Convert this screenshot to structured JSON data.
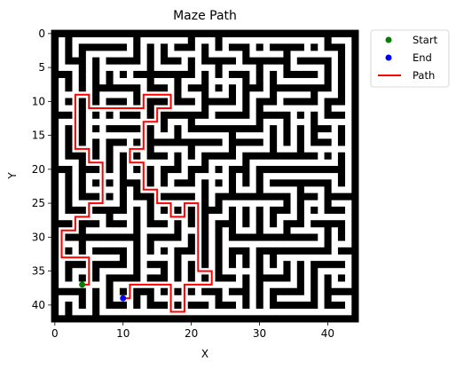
{
  "chart_data": {
    "type": "maze",
    "title": "Maze Path",
    "xlabel": "X",
    "ylabel": "Y",
    "xlim": [
      -0.5,
      44.5
    ],
    "ylim": [
      42.5,
      -0.5
    ],
    "x_ticks": [
      0,
      10,
      20,
      30,
      40
    ],
    "y_ticks": [
      0,
      5,
      10,
      15,
      20,
      25,
      30,
      35,
      40
    ],
    "grid": false,
    "legend_position": "outside-top-right",
    "colors": {
      "wall": "#000000",
      "open": "#ffffff",
      "start": "#008000",
      "end": "#0000ff",
      "path": "#ff0000"
    },
    "maze_size": [
      43,
      45
    ],
    "start": {
      "x": 4,
      "y": 37
    },
    "end": {
      "x": 10,
      "y": 39
    },
    "path": [
      [
        4,
        37
      ],
      [
        5,
        37
      ],
      [
        5,
        33
      ],
      [
        1,
        33
      ],
      [
        1,
        29
      ],
      [
        3,
        29
      ],
      [
        3,
        27
      ],
      [
        5,
        27
      ],
      [
        5,
        25
      ],
      [
        7,
        25
      ],
      [
        7,
        19
      ],
      [
        5,
        19
      ],
      [
        5,
        17
      ],
      [
        3,
        17
      ],
      [
        3,
        9
      ],
      [
        5,
        9
      ],
      [
        5,
        11
      ],
      [
        13,
        11
      ],
      [
        13,
        9
      ],
      [
        17,
        9
      ],
      [
        17,
        11
      ],
      [
        15,
        11
      ],
      [
        15,
        13
      ],
      [
        13,
        13
      ],
      [
        13,
        17
      ],
      [
        11,
        17
      ],
      [
        11,
        19
      ],
      [
        13,
        19
      ],
      [
        13,
        23
      ],
      [
        15,
        23
      ],
      [
        15,
        25
      ],
      [
        17,
        25
      ],
      [
        17,
        27
      ],
      [
        19,
        27
      ],
      [
        19,
        25
      ],
      [
        21,
        25
      ],
      [
        21,
        35
      ],
      [
        23,
        35
      ],
      [
        23,
        37
      ],
      [
        19,
        37
      ],
      [
        19,
        41
      ],
      [
        17,
        41
      ],
      [
        17,
        37
      ],
      [
        11,
        37
      ],
      [
        11,
        39
      ],
      [
        10,
        39
      ]
    ],
    "series": [
      {
        "name": "Start",
        "marker": "circle",
        "color": "#008000"
      },
      {
        "name": "End",
        "marker": "circle",
        "color": "#0000ff"
      },
      {
        "name": "Path",
        "marker": "line",
        "color": "#ff0000"
      }
    ]
  }
}
